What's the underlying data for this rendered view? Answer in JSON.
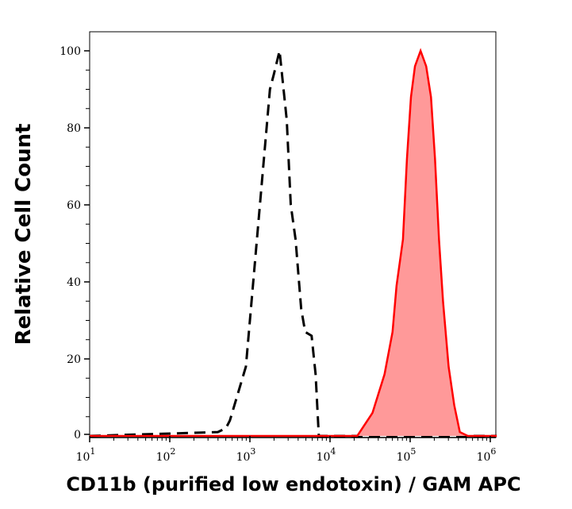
{
  "chart_data": {
    "type": "area",
    "xlabel": "CD11b (purified low endotoxin) / GAM APC",
    "ylabel": "Relative Cell Count",
    "x_scale": "log",
    "xlim": [
      10,
      1200000
    ],
    "ylim": [
      0,
      105
    ],
    "x_ticks": [
      {
        "base": "10",
        "exp": "1"
      },
      {
        "base": "10",
        "exp": "2"
      },
      {
        "base": "10",
        "exp": "3"
      },
      {
        "base": "10",
        "exp": "4"
      },
      {
        "base": "10",
        "exp": "5"
      },
      {
        "base": "10",
        "exp": "6"
      }
    ],
    "y_ticks": [
      "0",
      "20",
      "40",
      "60",
      "80",
      "100"
    ],
    "grid": false,
    "series": [
      {
        "style": "dashed-line",
        "color": "#000000",
        "log10_x": [
          2.6,
          2.7,
          2.75,
          2.85,
          2.95,
          3.05,
          3.15,
          3.25,
          3.3,
          3.37,
          3.42,
          3.46,
          3.51,
          3.57,
          3.64,
          3.69,
          3.77,
          3.82,
          3.86
        ],
        "y": [
          1,
          2,
          4,
          11,
          18,
          42,
          66,
          90,
          94,
          100,
          90,
          82,
          60,
          51,
          33,
          27,
          26,
          16,
          0
        ]
      },
      {
        "style": "filled",
        "color": "#ff0000",
        "fill": "#ff9999",
        "log10_x": [
          4.34,
          4.53,
          4.68,
          4.78,
          4.83,
          4.91,
          4.96,
          5.01,
          5.06,
          5.13,
          5.2,
          5.26,
          5.31,
          5.36,
          5.41,
          5.48,
          5.55,
          5.62,
          5.72
        ],
        "y": [
          0,
          6,
          16,
          27,
          39,
          51,
          72,
          88,
          96,
          100,
          96,
          88,
          72,
          51,
          35,
          18,
          8,
          1,
          0
        ]
      }
    ]
  }
}
